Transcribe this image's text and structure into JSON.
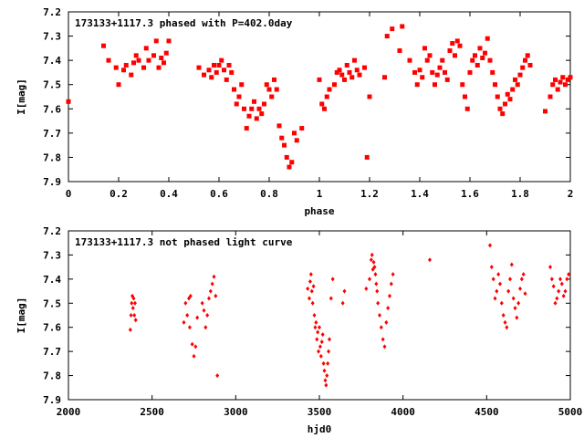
{
  "chart_data": [
    {
      "type": "scatter",
      "title": "173133+1117.3 phased with P=402.0day",
      "xlabel": "phase",
      "ylabel": "I[mag]",
      "xlim": [
        0,
        2
      ],
      "ylim": [
        7.9,
        7.2
      ],
      "y_inverted": true,
      "x_ticks": [
        "0",
        "0.2",
        "0.4",
        "0.6",
        "0.8",
        "1",
        "1.2",
        "1.4",
        "1.6",
        "1.8",
        "2"
      ],
      "y_ticks": [
        "7.2",
        "7.3",
        "7.4",
        "7.5",
        "7.6",
        "7.7",
        "7.8",
        "7.9"
      ],
      "marker_color": "#ff0000",
      "series": [
        {
          "x": [
            0.0,
            0.14,
            0.16,
            0.19,
            0.2,
            0.22,
            0.23,
            0.25,
            0.26,
            0.27,
            0.28,
            0.3,
            0.31,
            0.32,
            0.34,
            0.35,
            0.36,
            0.37,
            0.38,
            0.39,
            0.4,
            0.52,
            0.54,
            0.56,
            0.57,
            0.58,
            0.59,
            0.6,
            0.61,
            0.62,
            0.63,
            0.64,
            0.65,
            0.66,
            0.67,
            0.68,
            0.69,
            0.7,
            0.71,
            0.72,
            0.73,
            0.74,
            0.75,
            0.76,
            0.77,
            0.78,
            0.79,
            0.8,
            0.81,
            0.82,
            0.83,
            0.84,
            0.85,
            0.86,
            0.87,
            0.88,
            0.89,
            0.9,
            0.91,
            0.93,
            1.0,
            1.01,
            1.02,
            1.03,
            1.04,
            1.06,
            1.07,
            1.08,
            1.09,
            1.1,
            1.11,
            1.12,
            1.13,
            1.14,
            1.15,
            1.16,
            1.18,
            1.19,
            1.2,
            1.26,
            1.27,
            1.29,
            1.32,
            1.33,
            1.36,
            1.38,
            1.39,
            1.4,
            1.41,
            1.42,
            1.43,
            1.44,
            1.45,
            1.46,
            1.47,
            1.48,
            1.49,
            1.5,
            1.51,
            1.52,
            1.53,
            1.54,
            1.55,
            1.56,
            1.57,
            1.58,
            1.59,
            1.6,
            1.61,
            1.62,
            1.63,
            1.64,
            1.65,
            1.66,
            1.67,
            1.68,
            1.69,
            1.7,
            1.71,
            1.72,
            1.73,
            1.74,
            1.75,
            1.76,
            1.77,
            1.78,
            1.79,
            1.8,
            1.81,
            1.82,
            1.83,
            1.84,
            1.9,
            1.92,
            1.93,
            1.94,
            1.95,
            1.96,
            1.97,
            1.98,
            1.99,
            2.0
          ],
          "y": [
            7.57,
            7.34,
            7.4,
            7.43,
            7.5,
            7.44,
            7.42,
            7.46,
            7.41,
            7.38,
            7.4,
            7.43,
            7.35,
            7.4,
            7.38,
            7.32,
            7.43,
            7.39,
            7.41,
            7.37,
            7.32,
            7.43,
            7.46,
            7.44,
            7.47,
            7.42,
            7.45,
            7.42,
            7.4,
            7.44,
            7.48,
            7.42,
            7.45,
            7.52,
            7.58,
            7.55,
            7.5,
            7.6,
            7.68,
            7.63,
            7.6,
            7.57,
            7.64,
            7.6,
            7.62,
            7.58,
            7.5,
            7.52,
            7.55,
            7.48,
            7.52,
            7.67,
            7.72,
            7.75,
            7.8,
            7.84,
            7.82,
            7.7,
            7.73,
            7.68,
            7.48,
            7.58,
            7.6,
            7.55,
            7.52,
            7.5,
            7.45,
            7.44,
            7.46,
            7.48,
            7.42,
            7.45,
            7.47,
            7.4,
            7.44,
            7.46,
            7.43,
            7.8,
            7.55,
            7.47,
            7.3,
            7.27,
            7.36,
            7.26,
            7.4,
            7.45,
            7.5,
            7.44,
            7.47,
            7.35,
            7.4,
            7.38,
            7.45,
            7.5,
            7.46,
            7.43,
            7.4,
            7.45,
            7.48,
            7.36,
            7.33,
            7.38,
            7.32,
            7.34,
            7.5,
            7.55,
            7.6,
            7.45,
            7.4,
            7.38,
            7.42,
            7.35,
            7.39,
            7.37,
            7.31,
            7.4,
            7.45,
            7.5,
            7.55,
            7.6,
            7.62,
            7.58,
            7.54,
            7.56,
            7.52,
            7.48,
            7.5,
            7.46,
            7.43,
            7.4,
            7.38,
            7.42,
            7.61,
            7.55,
            7.5,
            7.48,
            7.52,
            7.49,
            7.47,
            7.5,
            7.48,
            7.47
          ]
        }
      ]
    },
    {
      "type": "scatter",
      "title": "173133+1117.3 not phased light curve",
      "xlabel": "hjd0",
      "ylabel": "I[mag]",
      "xlim": [
        2000,
        5000
      ],
      "ylim": [
        7.9,
        7.2
      ],
      "y_inverted": true,
      "x_ticks": [
        "2000",
        "2500",
        "3000",
        "3500",
        "4000",
        "4500",
        "5000"
      ],
      "y_ticks": [
        "7.2",
        "7.3",
        "7.4",
        "7.5",
        "7.6",
        "7.7",
        "7.8",
        "7.9"
      ],
      "marker_color": "#ff0000",
      "series": [
        {
          "x": [
            2370,
            2374,
            2378,
            2382,
            2386,
            2390,
            2394,
            2398,
            2402,
            2690,
            2700,
            2710,
            2720,
            2725,
            2730,
            2740,
            2750,
            2760,
            2770,
            2800,
            2810,
            2820,
            2830,
            2840,
            2850,
            2860,
            2870,
            2880,
            2890,
            3430,
            3440,
            3445,
            3450,
            3455,
            3460,
            3465,
            3470,
            3475,
            3480,
            3485,
            3490,
            3495,
            3500,
            3505,
            3510,
            3515,
            3520,
            3525,
            3530,
            3535,
            3540,
            3545,
            3550,
            3555,
            3560,
            3570,
            3580,
            3640,
            3650,
            3780,
            3800,
            3810,
            3815,
            3820,
            3825,
            3830,
            3835,
            3840,
            3845,
            3850,
            3860,
            3870,
            3880,
            3890,
            3900,
            3910,
            3920,
            3930,
            3940,
            4160,
            4520,
            4530,
            4540,
            4550,
            4560,
            4570,
            4580,
            4590,
            4600,
            4610,
            4620,
            4630,
            4640,
            4650,
            4660,
            4670,
            4680,
            4690,
            4700,
            4710,
            4720,
            4730,
            4880,
            4890,
            4900,
            4910,
            4920,
            4930,
            4940,
            4950,
            4960,
            4970,
            4980,
            4990
          ],
          "y": [
            7.61,
            7.55,
            7.5,
            7.47,
            7.52,
            7.48,
            7.55,
            7.5,
            7.57,
            7.58,
            7.5,
            7.55,
            7.48,
            7.6,
            7.47,
            7.67,
            7.72,
            7.68,
            7.56,
            7.5,
            7.53,
            7.6,
            7.55,
            7.48,
            7.45,
            7.42,
            7.39,
            7.47,
            7.8,
            7.44,
            7.48,
            7.41,
            7.38,
            7.45,
            7.5,
            7.43,
            7.55,
            7.6,
            7.58,
            7.65,
            7.62,
            7.7,
            7.6,
            7.68,
            7.72,
            7.66,
            7.63,
            7.75,
            7.78,
            7.82,
            7.84,
            7.8,
            7.75,
            7.7,
            7.65,
            7.48,
            7.4,
            7.5,
            7.45,
            7.44,
            7.4,
            7.32,
            7.3,
            7.36,
            7.33,
            7.35,
            7.38,
            7.42,
            7.45,
            7.5,
            7.55,
            7.6,
            7.65,
            7.68,
            7.58,
            7.52,
            7.47,
            7.42,
            7.38,
            7.32,
            7.26,
            7.35,
            7.4,
            7.48,
            7.45,
            7.38,
            7.42,
            7.5,
            7.55,
            7.58,
            7.6,
            7.45,
            7.4,
            7.34,
            7.48,
            7.52,
            7.56,
            7.5,
            7.44,
            7.4,
            7.38,
            7.46,
            7.35,
            7.4,
            7.43,
            7.5,
            7.48,
            7.45,
            7.4,
            7.42,
            7.47,
            7.45,
            7.4,
            7.38
          ]
        }
      ]
    }
  ]
}
